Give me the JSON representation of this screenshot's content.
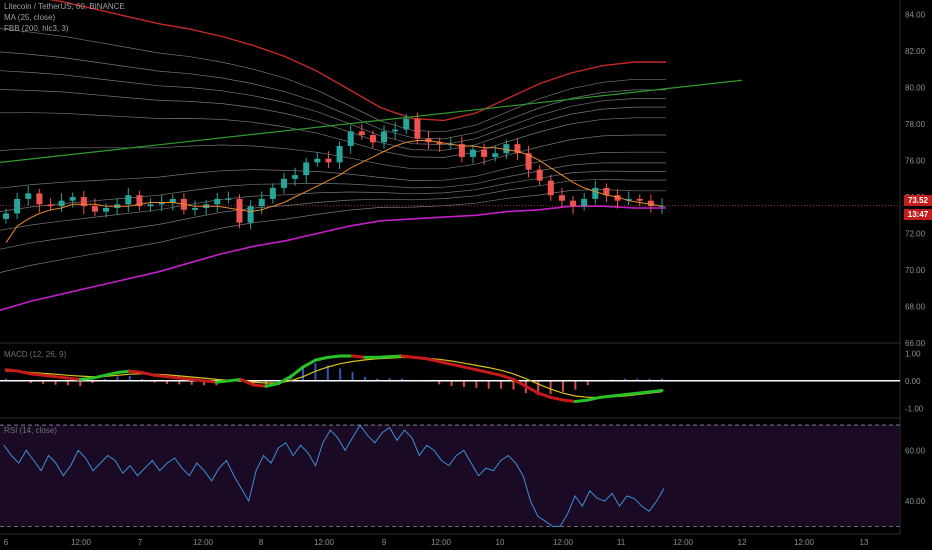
{
  "legend": {
    "symbol": "Litecoin / TetherUS, 60, BINANCE",
    "ma": "MA (25, close)",
    "fbb": "FBB (200, hlc3, 3)",
    "macd": "MACD (12, 26, 9)",
    "rsi": "RSI (14, close)"
  },
  "price_tags": {
    "last": "73.52",
    "countdown": "13:47"
  },
  "colors": {
    "background": "#000000",
    "bull": "#26a69a",
    "bear": "#ef5350",
    "ma": "#e88a2e",
    "fbb_upper": "#c62828",
    "fbb_lower": "#c51ec9",
    "fbb_band": "#9e9e9e",
    "trendline": "#2e9c2e",
    "rsi_line": "#3d8fd6",
    "rsi_fill": "#1a0a24",
    "macd_up": "#27c327",
    "macd_down": "#c81a1a",
    "signal": "#d6c21a",
    "zero_line": "#ffffff"
  },
  "chart_data": [
    {
      "type": "candlestick",
      "title": "Litecoin / TetherUS, 60, BINANCE",
      "yticks": [
        "66.00",
        "68.00",
        "70.00",
        "72.00",
        "74.00",
        "76.00",
        "78.00",
        "80.00",
        "82.00",
        "84.00"
      ],
      "ylim": [
        66,
        84.8
      ],
      "xticks": [
        "6",
        "12:00",
        "7",
        "12:00",
        "8",
        "12:00",
        "9",
        "12:00",
        "10",
        "12:00",
        "11",
        "12:00",
        "12",
        "12:00",
        "13"
      ],
      "close_approx": [
        73.1,
        73.9,
        74.2,
        73.6,
        73.5,
        73.8,
        74.0,
        73.5,
        73.2,
        73.4,
        73.6,
        74.1,
        73.5,
        73.6,
        73.7,
        73.9,
        73.3,
        73.4,
        73.6,
        73.9,
        73.9,
        72.6,
        73.5,
        73.9,
        74.5,
        75.0,
        75.2,
        75.9,
        76.1,
        75.9,
        76.8,
        77.6,
        77.4,
        77.0,
        77.6,
        77.7,
        78.3,
        77.2,
        77.0,
        76.9,
        76.9,
        76.2,
        76.6,
        76.2,
        76.4,
        76.9,
        76.4,
        75.5,
        74.9,
        74.1,
        73.8,
        73.5,
        73.9,
        74.5,
        74.1,
        73.8,
        73.9,
        73.8,
        73.5,
        73.52
      ],
      "ma25_approx": [
        71.5,
        72.4,
        72.8,
        73.1,
        73.3,
        73.4,
        73.6,
        73.6,
        73.6,
        73.5,
        73.5,
        73.5,
        73.6,
        73.7,
        73.7,
        73.7,
        73.6,
        73.5,
        73.5,
        73.5,
        73.4,
        73.3,
        73.2,
        73.3,
        73.5,
        73.7,
        74.0,
        74.3,
        74.6,
        74.9,
        75.2,
        75.6,
        75.9,
        76.2,
        76.5,
        76.8,
        77.0,
        77.1,
        77.1,
        77.0,
        76.9,
        76.8,
        76.8,
        76.7,
        76.7,
        76.6,
        76.5,
        76.3,
        76.0,
        75.6,
        75.2,
        74.8,
        74.5,
        74.3,
        74.1,
        74.0,
        73.8,
        73.7,
        73.6,
        73.5
      ],
      "fbb_upper": [
        85.3,
        85.0,
        84.7,
        84.3,
        83.9,
        83.5,
        83.2,
        82.8,
        82.3,
        81.7,
        80.9,
        79.9,
        78.9,
        78.3,
        78.2,
        78.6,
        79.4,
        80.2,
        80.8,
        81.2,
        81.4,
        81.4
      ],
      "fbb_lower": [
        67.8,
        68.3,
        68.7,
        69.1,
        69.5,
        69.9,
        70.4,
        70.9,
        71.3,
        71.6,
        72.0,
        72.4,
        72.7,
        72.8,
        72.9,
        73.0,
        73.2,
        73.3,
        73.5,
        73.5,
        73.4,
        73.4
      ],
      "fbb_index_note": "",
      "trendline": [
        [
          0,
          75.9
        ],
        [
          1,
          80.4
        ]
      ],
      "last_price": 73.52
    },
    {
      "type": "line",
      "title": "MACD (12, 26, 9)",
      "yticks": [
        "1.00",
        "0.00",
        "-1.00"
      ],
      "ylim": [
        -1.35,
        1.3
      ],
      "macd": [
        0.4,
        0.35,
        0.25,
        0.2,
        0.15,
        0.1,
        0.05,
        0.1,
        0.2,
        0.3,
        0.35,
        0.3,
        0.2,
        0.15,
        0.1,
        0.05,
        0.0,
        -0.05,
        0.0,
        0.05,
        -0.15,
        -0.2,
        -0.1,
        0.15,
        0.5,
        0.75,
        0.85,
        0.9,
        0.9,
        0.85,
        0.85,
        0.88,
        0.9,
        0.85,
        0.8,
        0.7,
        0.6,
        0.5,
        0.4,
        0.3,
        0.2,
        0.05,
        -0.2,
        -0.45,
        -0.6,
        -0.7,
        -0.75,
        -0.7,
        -0.6,
        -0.55,
        -0.5,
        -0.45,
        -0.4,
        -0.35
      ],
      "signal": [
        0.35,
        0.35,
        0.3,
        0.27,
        0.24,
        0.2,
        0.17,
        0.15,
        0.16,
        0.2,
        0.24,
        0.26,
        0.24,
        0.22,
        0.18,
        0.14,
        0.1,
        0.05,
        0.02,
        0.01,
        -0.05,
        -0.08,
        -0.08,
        0.0,
        0.15,
        0.35,
        0.5,
        0.62,
        0.7,
        0.76,
        0.8,
        0.82,
        0.85,
        0.84,
        0.82,
        0.78,
        0.72,
        0.64,
        0.56,
        0.48,
        0.38,
        0.25,
        0.08,
        -0.12,
        -0.3,
        -0.45,
        -0.55,
        -0.6,
        -0.6,
        -0.58,
        -0.55,
        -0.5,
        -0.45,
        -0.4
      ]
    },
    {
      "type": "line",
      "title": "RSI (14, close)",
      "yticks": [
        "60.00",
        "40.00"
      ],
      "ylim": [
        27,
        72
      ],
      "bands": [
        70,
        30
      ],
      "values": [
        62,
        58,
        55,
        60,
        56,
        52,
        58,
        55,
        50,
        54,
        60,
        57,
        52,
        55,
        58,
        56,
        51,
        54,
        50,
        53,
        56,
        52,
        55,
        57,
        53,
        50,
        55,
        52,
        48,
        53,
        56,
        50,
        45,
        40,
        52,
        58,
        55,
        61,
        63,
        58,
        62,
        59,
        54,
        63,
        68,
        65,
        60,
        65,
        70,
        66,
        63,
        67,
        69,
        64,
        68,
        65,
        58,
        62,
        60,
        56,
        54,
        58,
        60,
        55,
        50,
        53,
        52,
        56,
        58,
        55,
        50,
        40,
        34,
        32,
        30,
        30,
        35,
        42,
        38,
        44,
        41,
        40,
        43,
        38,
        42,
        41,
        38,
        36,
        40,
        45
      ]
    }
  ]
}
